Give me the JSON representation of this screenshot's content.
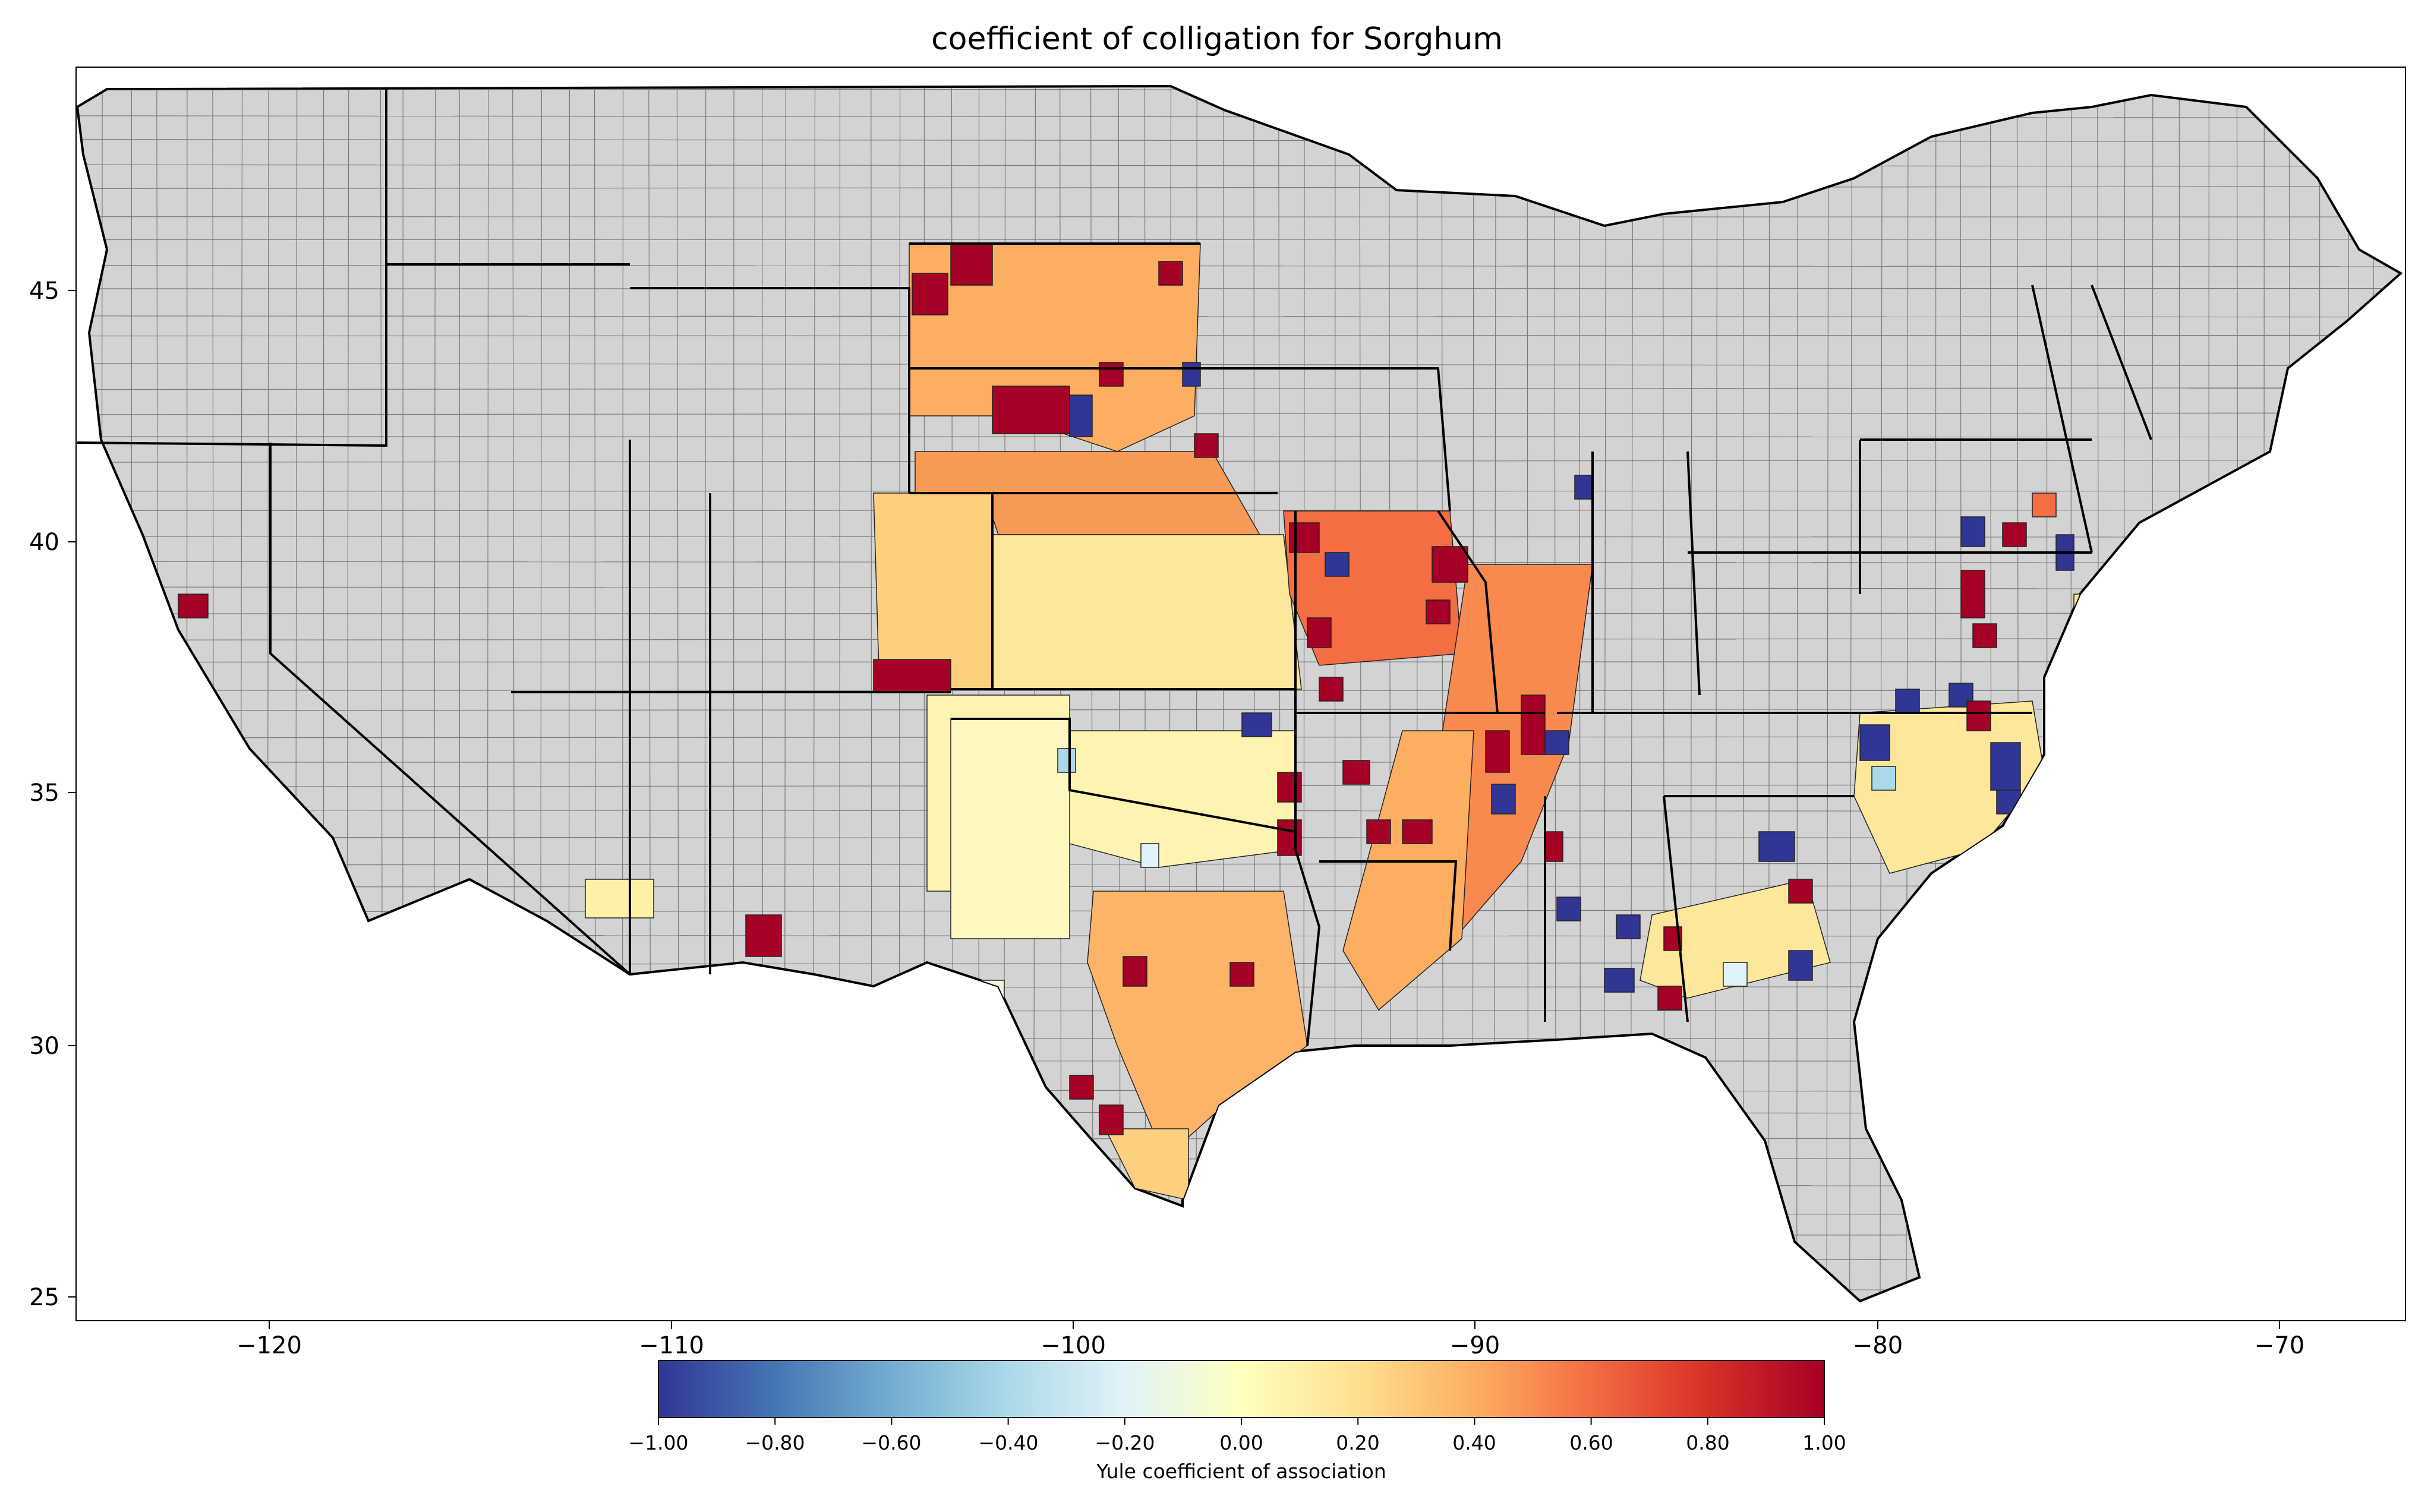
{
  "title": "coefficient of colligation for Sorghum",
  "axes": {
    "x_ticks": [
      "−120",
      "−110",
      "−100",
      "−90",
      "−80",
      "−70"
    ],
    "x_tick_values": [
      -120,
      -110,
      -100,
      -90,
      -80,
      -70
    ],
    "y_ticks": [
      "25",
      "30",
      "35",
      "40",
      "45"
    ],
    "y_tick_values": [
      25,
      30,
      35,
      40,
      45
    ],
    "xlim": [
      -124.8,
      -66.8
    ],
    "ylim": [
      24.6,
      49.5
    ]
  },
  "colorbar": {
    "label": "Yule coefficient of association",
    "ticks": [
      "−1.00",
      "−0.80",
      "−0.60",
      "−0.40",
      "−0.20",
      "0.00",
      "0.20",
      "0.40",
      "0.60",
      "0.80",
      "1.00"
    ],
    "tick_values": [
      -1.0,
      -0.8,
      -0.6,
      -0.4,
      -0.2,
      0.0,
      0.2,
      0.4,
      0.6,
      0.8,
      1.0
    ],
    "colormap": "RdYlBu_r",
    "stops": [
      "#313695",
      "#4575b4",
      "#74add1",
      "#abd9e9",
      "#e0f3f8",
      "#ffffbf",
      "#fee090",
      "#fdae61",
      "#f46d43",
      "#d73027",
      "#a50026"
    ]
  },
  "colors": {
    "no_data_fill": "#d3d3d3",
    "county_edge": "#000000"
  }
}
